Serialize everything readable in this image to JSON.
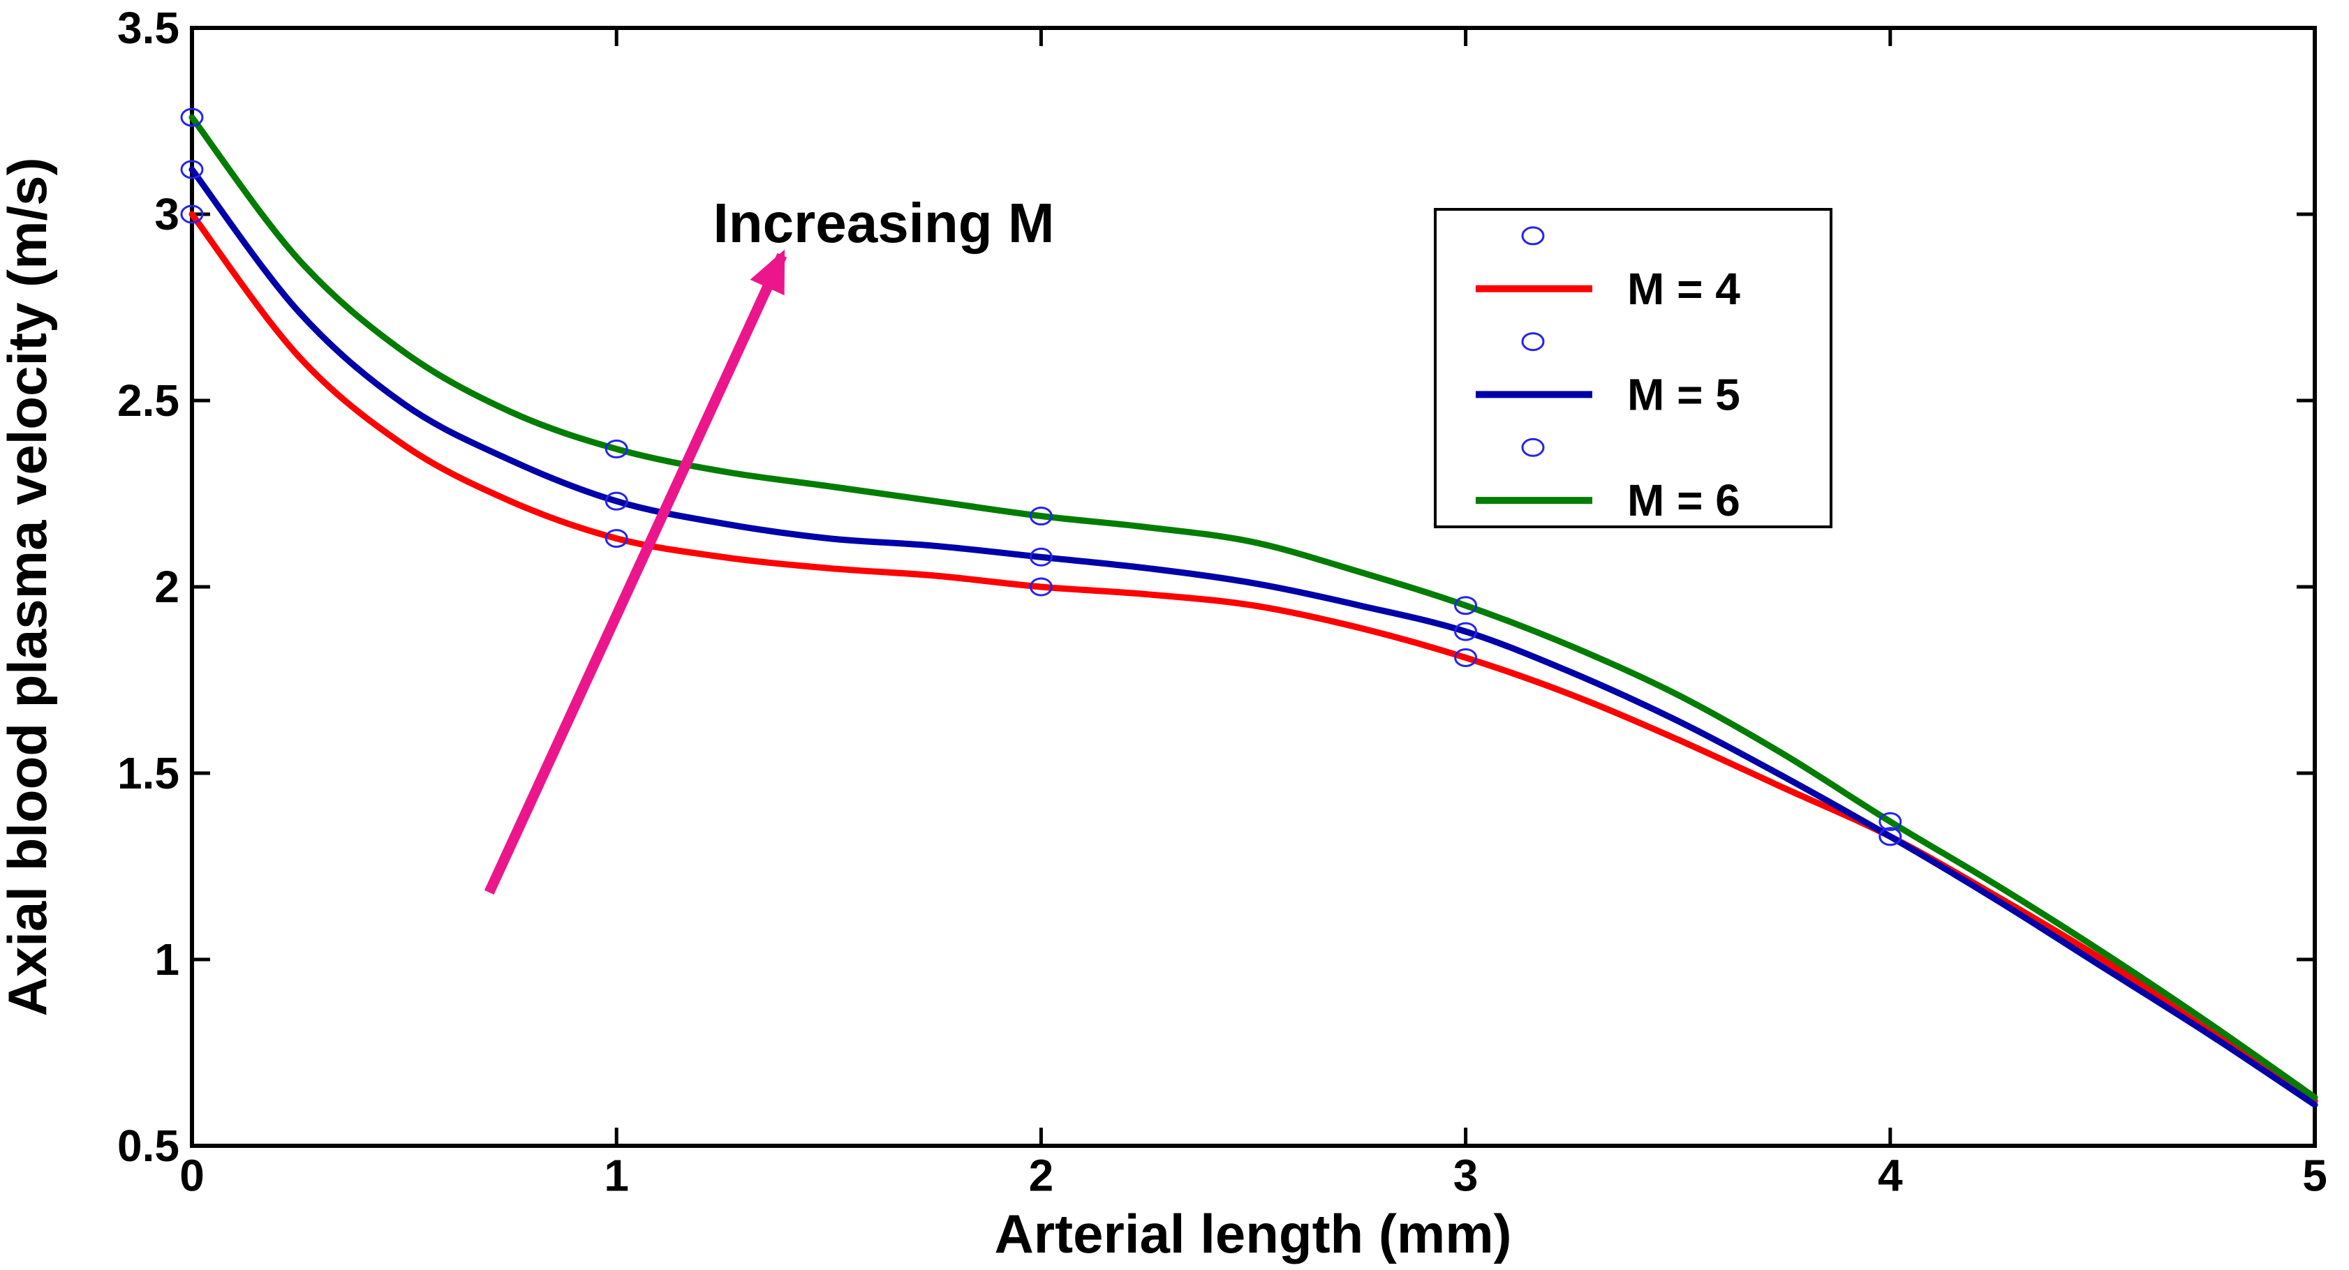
{
  "chart_data": {
    "type": "line",
    "title": "",
    "xlabel": "Arterial length (mm)",
    "ylabel": "Axial blood plasma velocity (m/s)",
    "xlim": [
      0,
      5
    ],
    "ylim": [
      0.5,
      3.5
    ],
    "xticks": [
      0,
      1,
      2,
      3,
      4,
      5
    ],
    "xtick_labels": [
      "0",
      "1",
      "2",
      "3",
      "4",
      "5"
    ],
    "yticks": [
      0.5,
      1,
      1.5,
      2,
      2.5,
      3,
      3.5
    ],
    "ytick_labels": [
      "0.5",
      "1",
      "1.5",
      "2",
      "2.5",
      "3",
      "3.5"
    ],
    "grid": false,
    "x": [
      0,
      0.25,
      0.5,
      0.75,
      1,
      1.25,
      1.5,
      1.75,
      2,
      2.25,
      2.5,
      2.75,
      3,
      3.25,
      3.5,
      3.75,
      4,
      4.25,
      4.5,
      4.75,
      5
    ],
    "series": [
      {
        "name": "M = 4",
        "color": "#ff0000",
        "values": [
          3.0,
          2.62,
          2.38,
          2.23,
          2.13,
          2.08,
          2.05,
          2.03,
          2.0,
          1.98,
          1.95,
          1.89,
          1.81,
          1.71,
          1.59,
          1.46,
          1.33,
          1.17,
          1.0,
          0.81,
          0.62
        ]
      },
      {
        "name": "M = 5",
        "color": "#0000a8",
        "values": [
          3.12,
          2.74,
          2.49,
          2.34,
          2.23,
          2.17,
          2.13,
          2.11,
          2.08,
          2.05,
          2.01,
          1.95,
          1.88,
          1.77,
          1.64,
          1.49,
          1.33,
          1.16,
          0.98,
          0.8,
          0.61
        ]
      },
      {
        "name": "M = 6",
        "color": "#007d00",
        "values": [
          3.26,
          2.88,
          2.63,
          2.47,
          2.37,
          2.31,
          2.27,
          2.23,
          2.19,
          2.16,
          2.12,
          2.04,
          1.95,
          1.84,
          1.71,
          1.55,
          1.37,
          1.2,
          1.02,
          0.83,
          0.63
        ]
      }
    ],
    "markers": {
      "shape": "open-circle",
      "color": "#2424ee",
      "x": [
        0,
        1,
        2,
        3,
        4
      ]
    },
    "annotation": {
      "text": "Increasing M",
      "color": "#ec168c",
      "arrow_from": [
        0.7,
        1.18
      ],
      "arrow_to": [
        1.39,
        2.89
      ]
    },
    "legend": {
      "position": "top-right",
      "entries": [
        {
          "type": "marker",
          "label": ""
        },
        {
          "type": "line",
          "label": "M = 4",
          "color": "#ff0000"
        },
        {
          "type": "marker",
          "label": ""
        },
        {
          "type": "line",
          "label": "M = 5",
          "color": "#0000a8"
        },
        {
          "type": "marker",
          "label": ""
        },
        {
          "type": "line",
          "label": "M = 6",
          "color": "#007d00"
        }
      ]
    }
  }
}
